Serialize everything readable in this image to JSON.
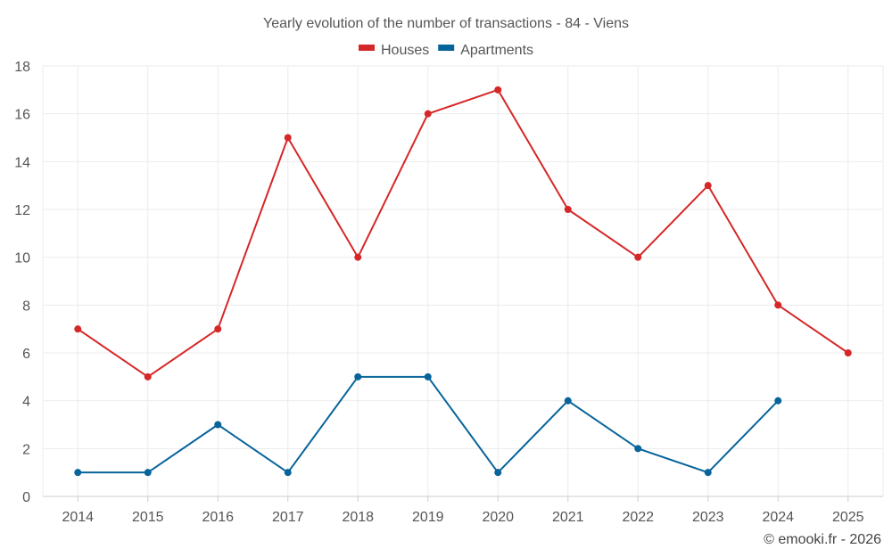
{
  "chart_data": {
    "type": "line",
    "title": "Yearly evolution of the number of transactions - 84 - Viens",
    "categories": [
      "2014",
      "2015",
      "2016",
      "2017",
      "2018",
      "2019",
      "2020",
      "2021",
      "2022",
      "2023",
      "2024",
      "2025"
    ],
    "series": [
      {
        "name": "Houses",
        "color": "#d62728",
        "values": [
          7,
          5,
          7,
          15,
          10,
          16,
          17,
          12,
          10,
          13,
          8,
          6
        ]
      },
      {
        "name": "Apartments",
        "color": "#07649a",
        "values": [
          1,
          1,
          3,
          1,
          5,
          5,
          1,
          4,
          2,
          1,
          4,
          null
        ]
      }
    ],
    "ylim": [
      0,
      18
    ],
    "yticks": [
      0,
      2,
      4,
      6,
      8,
      10,
      12,
      14,
      16,
      18
    ],
    "grid": true,
    "legend": "top-center",
    "xlabel": "",
    "ylabel": ""
  },
  "credit": "© emooki.fr - 2026"
}
